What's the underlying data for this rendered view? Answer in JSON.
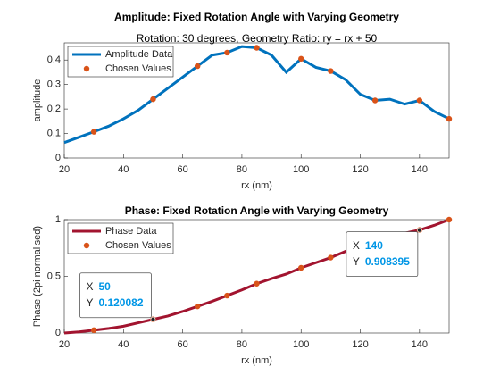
{
  "chart_data": [
    {
      "type": "line",
      "title": "Amplitude: Fixed Rotation Angle with Varying Geometry",
      "subtitle": "Rotation: 30 degrees, Geometry Ratio: ry = rx + 50",
      "xlabel": "rx (nm)",
      "ylabel": "amplitude",
      "x": [
        20,
        25,
        30,
        35,
        40,
        45,
        50,
        55,
        60,
        65,
        70,
        75,
        80,
        85,
        90,
        95,
        100,
        105,
        110,
        115,
        120,
        125,
        130,
        135,
        140,
        145,
        150
      ],
      "series": [
        {
          "name": "Amplitude Data",
          "color": "#0072bd",
          "style": "line",
          "values": [
            0.063,
            0.085,
            0.107,
            0.13,
            0.16,
            0.195,
            0.24,
            0.285,
            0.33,
            0.375,
            0.42,
            0.43,
            0.455,
            0.45,
            0.42,
            0.35,
            0.405,
            0.37,
            0.355,
            0.32,
            0.26,
            0.235,
            0.24,
            0.22,
            0.235,
            0.19,
            0.16
          ]
        },
        {
          "name": "Chosen Values",
          "color": "#d95319",
          "style": "markers",
          "x": [
            30,
            50,
            65,
            75,
            85,
            100,
            110,
            125,
            140,
            150
          ],
          "values": [
            0.107,
            0.24,
            0.375,
            0.43,
            0.45,
            0.405,
            0.355,
            0.235,
            0.235,
            0.16
          ]
        }
      ],
      "xlim": [
        20,
        150
      ],
      "ylim": [
        0,
        0.47
      ],
      "xticks": [
        20,
        40,
        60,
        80,
        100,
        120,
        140
      ],
      "yticks": [
        0,
        0.1,
        0.2,
        0.3,
        0.4
      ],
      "legend": "upper left"
    },
    {
      "type": "line",
      "title": "Phase: Fixed Rotation Angle with Varying Geometry",
      "xlabel": "rx (nm)",
      "ylabel": "Phase (2pi normalised)",
      "x": [
        20,
        25,
        30,
        35,
        40,
        45,
        50,
        55,
        60,
        65,
        70,
        75,
        80,
        85,
        90,
        95,
        100,
        105,
        110,
        115,
        120,
        125,
        130,
        135,
        140,
        145,
        150
      ],
      "series": [
        {
          "name": "Phase Data",
          "color": "#a2142f",
          "style": "line",
          "values": [
            0,
            0.01,
            0.025,
            0.04,
            0.06,
            0.09,
            0.120082,
            0.15,
            0.19,
            0.235,
            0.28,
            0.33,
            0.38,
            0.435,
            0.48,
            0.52,
            0.575,
            0.62,
            0.665,
            0.72,
            0.77,
            0.815,
            0.85,
            0.88,
            0.908395,
            0.95,
            1
          ]
        },
        {
          "name": "Chosen Values",
          "color": "#d95319",
          "style": "markers",
          "x": [
            30,
            50,
            65,
            75,
            85,
            100,
            110,
            125,
            140,
            150
          ],
          "values": [
            0.025,
            0.120082,
            0.235,
            0.33,
            0.435,
            0.575,
            0.665,
            0.815,
            0.908395,
            1
          ]
        }
      ],
      "xlim": [
        20,
        150
      ],
      "ylim": [
        0,
        1
      ],
      "xticks": [
        20,
        40,
        60,
        80,
        100,
        120,
        140
      ],
      "yticks": [
        0,
        0.5,
        1
      ],
      "legend": "upper left",
      "datatips": [
        {
          "x_label": "X",
          "x": 50,
          "y_label": "Y",
          "y": 0.120082
        },
        {
          "x_label": "X",
          "x": 140,
          "y_label": "Y",
          "y": 0.908395
        }
      ]
    }
  ]
}
